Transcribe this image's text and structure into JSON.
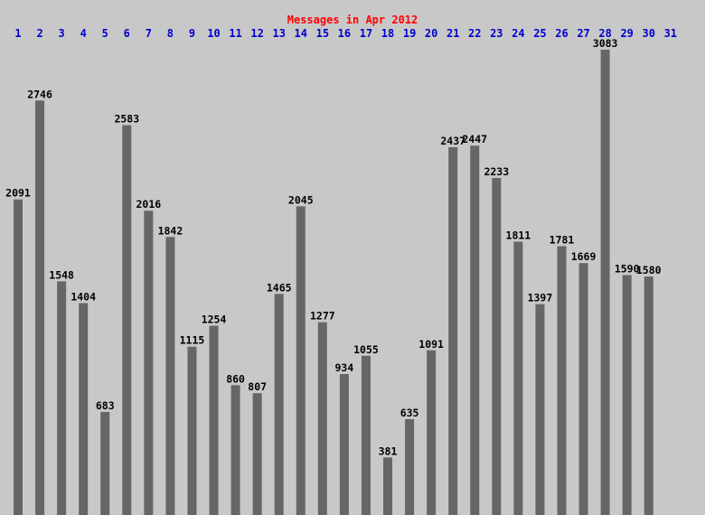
{
  "chart_data": {
    "type": "bar",
    "title": "Messages in Apr 2012",
    "categories": [
      "1",
      "2",
      "3",
      "4",
      "5",
      "6",
      "7",
      "8",
      "9",
      "10",
      "11",
      "12",
      "13",
      "14",
      "15",
      "16",
      "17",
      "18",
      "19",
      "20",
      "21",
      "22",
      "23",
      "24",
      "25",
      "26",
      "27",
      "28",
      "29",
      "30",
      "31"
    ],
    "values": [
      2091,
      2746,
      1548,
      1404,
      683,
      2583,
      2016,
      1842,
      1115,
      1254,
      860,
      807,
      1465,
      2045,
      1277,
      934,
      1055,
      381,
      635,
      1091,
      2437,
      2447,
      2233,
      1811,
      1397,
      1781,
      1669,
      3083,
      1590,
      1580,
      null
    ],
    "xlabel": "",
    "ylabel": "",
    "ylim": [
      0,
      3083
    ],
    "grid": false,
    "legend": "none"
  },
  "colors": {
    "background": "#c8c8c8",
    "bar": "#666666",
    "title": "#ff0000",
    "day_labels": "#0000cc",
    "value_labels": "#000000"
  }
}
